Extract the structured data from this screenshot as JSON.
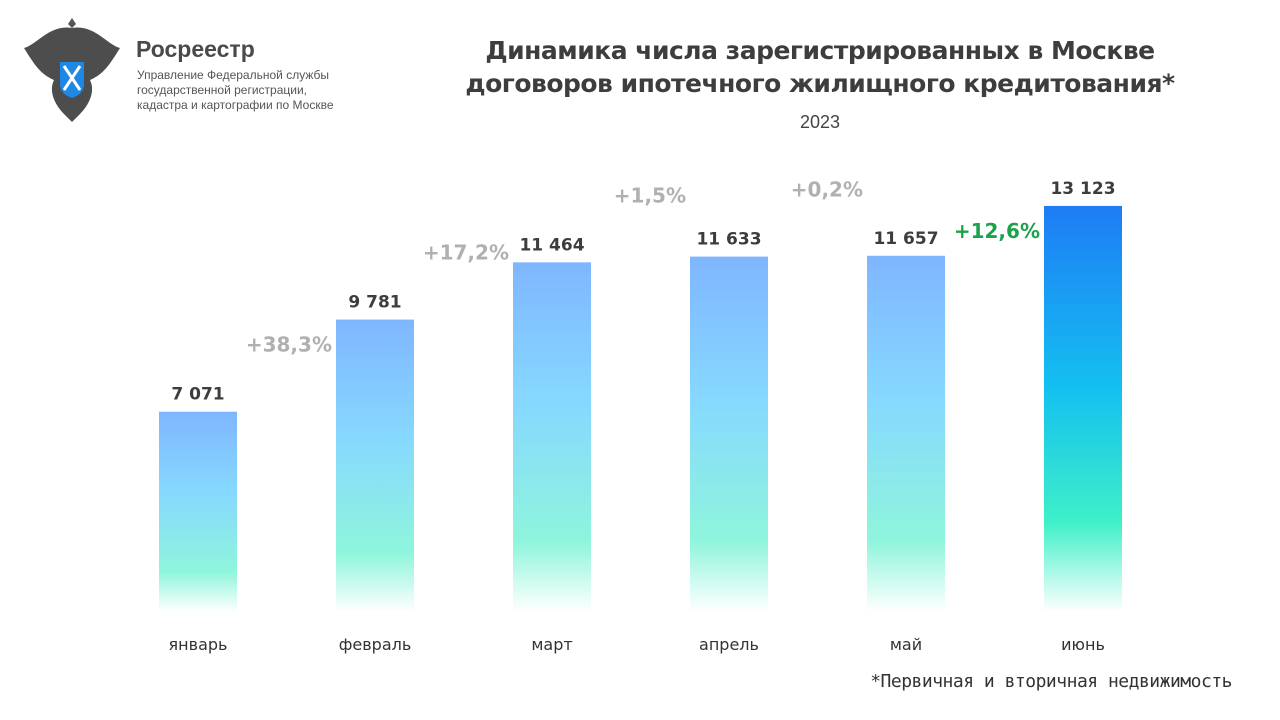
{
  "header": {
    "brand": "Росреестр",
    "org_lines": [
      "Управление Федеральной службы",
      "государственной регистрации,",
      "кадастра и картографии по Москве"
    ],
    "title_lines": [
      "Динамика числа зарегистрированных в Москве",
      "договоров ипотечного жилищного кредитования*"
    ],
    "subtitle": "2023"
  },
  "footnote": "*Первичная и вторичная недвижимость",
  "chart_data": {
    "type": "bar",
    "title": "Динамика числа зарегистрированных в Москве договоров ипотечного жилищного кредитования*",
    "subtitle": "2023",
    "categories": [
      "январь",
      "февраль",
      "март",
      "апрель",
      "май",
      "июнь"
    ],
    "values": [
      7071,
      9781,
      11464,
      11633,
      11657,
      13123
    ],
    "value_labels": [
      "7 071",
      "9 781",
      "11 464",
      "11 633",
      "11 657",
      "13 123"
    ],
    "change_labels": [
      "",
      "+38,3%",
      "+17,2%",
      "+1,5%",
      "+0,2%",
      "+12,6%"
    ],
    "grid": false,
    "colors": {
      "bar_top": "#7fb6ff",
      "bar_mid": "#86d8ff",
      "bar_bottom": "#8ff5dc",
      "highlight_top": "#1e7cf5",
      "highlight_mid": "#14c0f0",
      "highlight_bottom": "#3ff0c8",
      "change": "#b0b0b0",
      "highlight_change": "#1aa34a"
    }
  }
}
